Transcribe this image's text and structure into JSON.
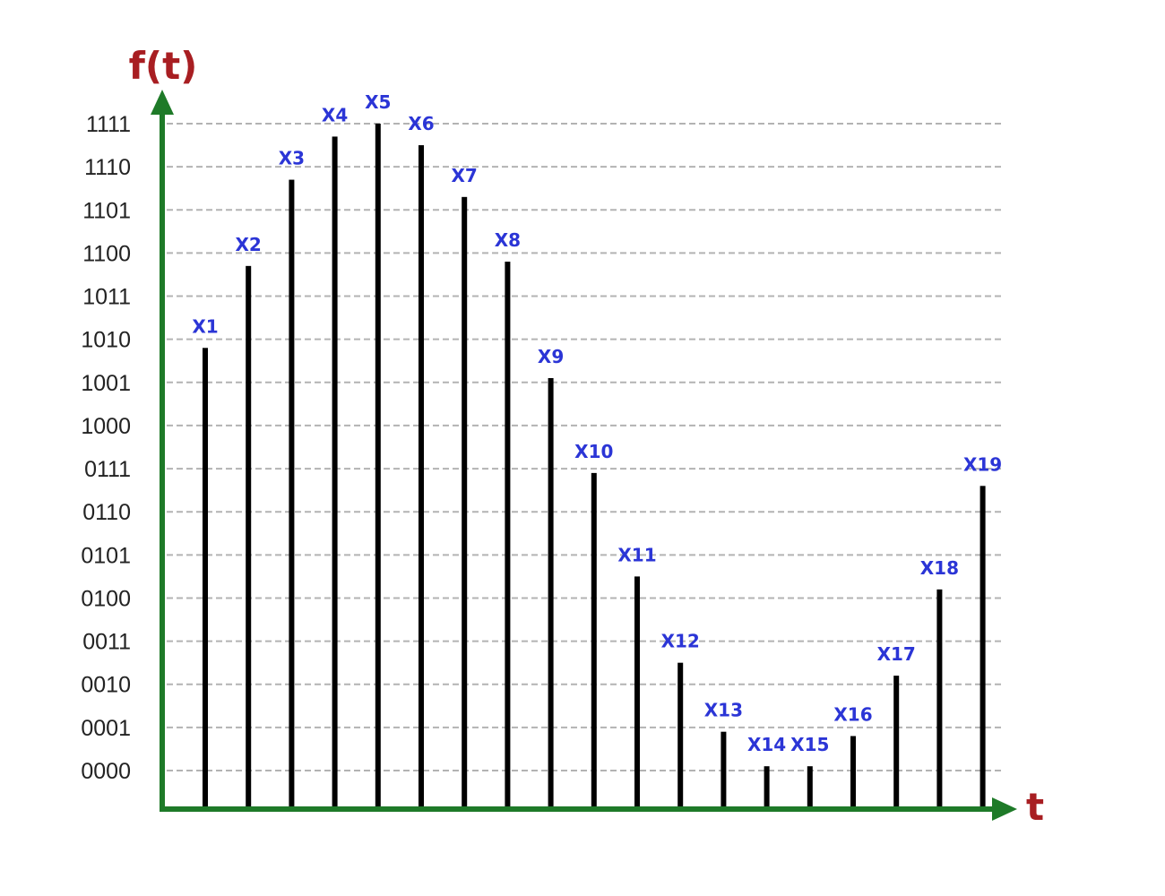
{
  "chart_data": {
    "type": "bar",
    "ylabel": "f(t)",
    "xlabel": "t",
    "ylim": [
      0,
      15
    ],
    "yticks": [
      {
        "value": 0,
        "label": "0000"
      },
      {
        "value": 1,
        "label": "0001"
      },
      {
        "value": 2,
        "label": "0010"
      },
      {
        "value": 3,
        "label": "0011"
      },
      {
        "value": 4,
        "label": "0100"
      },
      {
        "value": 5,
        "label": "0101"
      },
      {
        "value": 6,
        "label": "0110"
      },
      {
        "value": 7,
        "label": "0111"
      },
      {
        "value": 8,
        "label": "1000"
      },
      {
        "value": 9,
        "label": "1001"
      },
      {
        "value": 10,
        "label": "1010"
      },
      {
        "value": 11,
        "label": "1011"
      },
      {
        "value": 12,
        "label": "1100"
      },
      {
        "value": 13,
        "label": "1101"
      },
      {
        "value": 14,
        "label": "1110"
      },
      {
        "value": 15,
        "label": "1111"
      }
    ],
    "grid": true,
    "samples": [
      {
        "label": "X1",
        "value": 9.8
      },
      {
        "label": "X2",
        "value": 11.7
      },
      {
        "label": "X3",
        "value": 13.7
      },
      {
        "label": "X4",
        "value": 14.7
      },
      {
        "label": "X5",
        "value": 15.0
      },
      {
        "label": "X6",
        "value": 14.5
      },
      {
        "label": "X7",
        "value": 13.3
      },
      {
        "label": "X8",
        "value": 11.8
      },
      {
        "label": "X9",
        "value": 9.1
      },
      {
        "label": "X10",
        "value": 6.9
      },
      {
        "label": "X11",
        "value": 4.5
      },
      {
        "label": "X12",
        "value": 2.5
      },
      {
        "label": "X13",
        "value": 0.9
      },
      {
        "label": "X14",
        "value": 0.1
      },
      {
        "label": "X15",
        "value": 0.1
      },
      {
        "label": "X16",
        "value": 0.8
      },
      {
        "label": "X17",
        "value": 2.2
      },
      {
        "label": "X18",
        "value": 4.2
      },
      {
        "label": "X19",
        "value": 6.6
      }
    ],
    "colors": {
      "axis": "#1e7a28",
      "axis_label": "#a81e22",
      "stem": "#000000",
      "data_label": "#2b35d6",
      "grid": "#b3b3b3",
      "tick_label": "#222222"
    }
  }
}
